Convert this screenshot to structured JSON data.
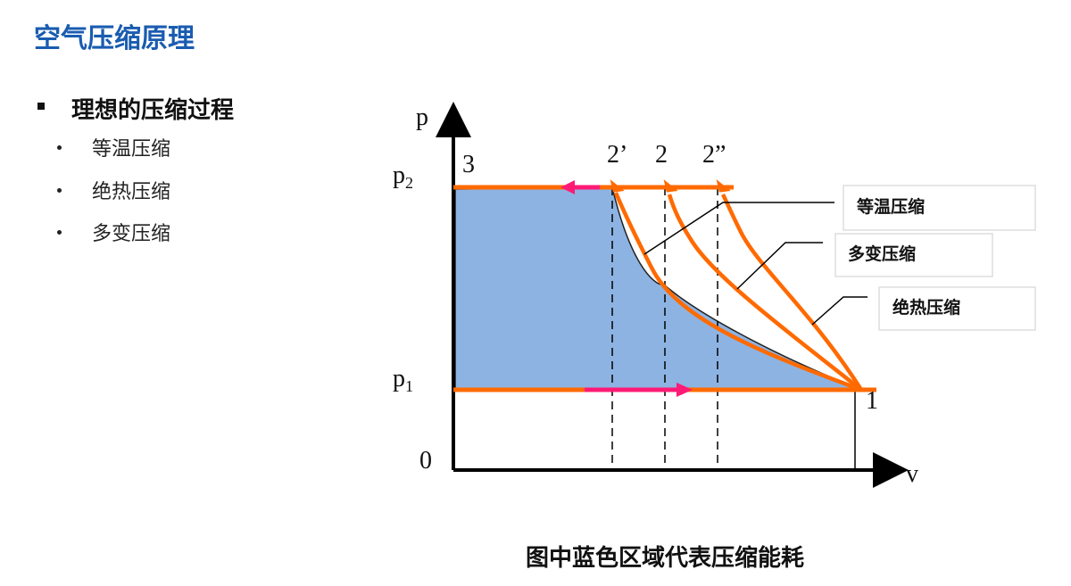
{
  "title": "空气压缩原理",
  "section": {
    "heading": "理想的压缩过程",
    "items": [
      "等温压缩",
      "绝热压缩",
      "多变压缩"
    ]
  },
  "diagram": {
    "axis_y": "p",
    "axis_x": "v",
    "origin": "0",
    "p2_label": "p",
    "p2_sub": "2",
    "p1_label": "p",
    "p1_sub": "1",
    "point_3": "3",
    "point_1": "1",
    "point_2prime": "2’",
    "point_2": "2",
    "point_2dprime": "2”",
    "callouts": {
      "isothermal": "等温压缩",
      "polytropic": "多变压缩",
      "adiabatic": "绝热压缩"
    },
    "colors": {
      "fill": "#8db3e2",
      "curve": "#ff6a00",
      "arrow": "#ff1a75"
    }
  },
  "caption": "图中蓝色区域代表压缩能耗"
}
